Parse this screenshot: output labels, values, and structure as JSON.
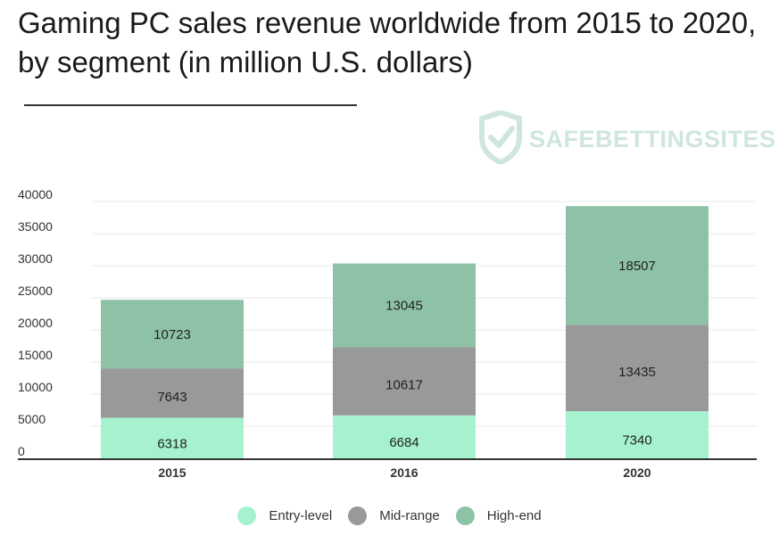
{
  "title": "Gaming PC sales revenue worldwide from 2015 to 2020, by segment (in million U.S. dollars)",
  "logo": {
    "text": "SAFEBETTINGSITES",
    "icon": "shield-check-icon",
    "color": "#cfe6dc"
  },
  "chart_data": {
    "type": "bar",
    "stacked": true,
    "categories": [
      "2015",
      "2016",
      "2020"
    ],
    "series": [
      {
        "name": "Entry-level",
        "color": "#a6f2cf",
        "values": [
          6318,
          6684,
          7340
        ]
      },
      {
        "name": "Mid-range",
        "color": "#999999",
        "values": [
          7643,
          10617,
          13435
        ]
      },
      {
        "name": "High-end",
        "color": "#8dc2a6",
        "values": [
          10723,
          13045,
          18507
        ]
      }
    ],
    "ylim": [
      0,
      40000
    ],
    "yticks": [
      "0",
      "5000",
      "10000",
      "15000",
      "20000",
      "25000",
      "30000",
      "35000",
      "40000"
    ],
    "grid": true,
    "legend": "bottom"
  }
}
